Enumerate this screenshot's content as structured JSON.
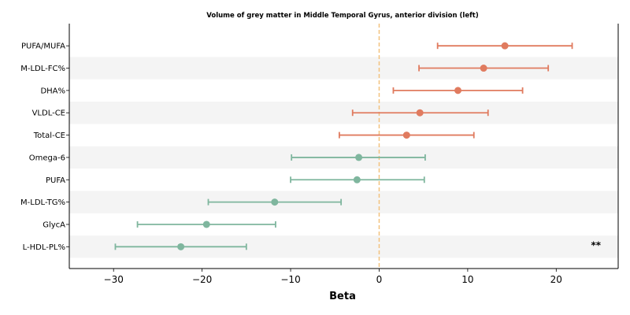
{
  "chart_data": {
    "type": "forest",
    "title": "Volume of grey matter in Middle Temporal Gyrus, anterior division (left)",
    "xlabel": "Beta",
    "xlim": [
      -35,
      27
    ],
    "xticks": [
      -30,
      -20,
      -10,
      0,
      10,
      20
    ],
    "xtick_labels": [
      "−30",
      "−20",
      "−10",
      "0",
      "10",
      "20"
    ],
    "reference_line": 0,
    "colors": {
      "positive": "#e07b5f",
      "negative": "#7fb69e",
      "reference": "#f2c27e",
      "band": "#f4f4f4"
    },
    "rows": [
      {
        "label": "PUFA/MUFA",
        "beta": 14.2,
        "lo": 6.6,
        "hi": 21.8,
        "annotation": ""
      },
      {
        "label": "M-LDL-FC%",
        "beta": 11.8,
        "lo": 4.5,
        "hi": 19.1,
        "annotation": ""
      },
      {
        "label": "DHA%",
        "beta": 8.9,
        "lo": 1.6,
        "hi": 16.2,
        "annotation": ""
      },
      {
        "label": "VLDL-CE",
        "beta": 4.6,
        "lo": -3.0,
        "hi": 12.3,
        "annotation": ""
      },
      {
        "label": "Total-CE",
        "beta": 3.1,
        "lo": -4.5,
        "hi": 10.7,
        "annotation": ""
      },
      {
        "label": "Omega-6",
        "beta": -2.3,
        "lo": -9.9,
        "hi": 5.2,
        "annotation": ""
      },
      {
        "label": "PUFA",
        "beta": -2.5,
        "lo": -10.0,
        "hi": 5.1,
        "annotation": ""
      },
      {
        "label": "M-LDL-TG%",
        "beta": -11.8,
        "lo": -19.3,
        "hi": -4.3,
        "annotation": ""
      },
      {
        "label": "GlycA",
        "beta": -19.5,
        "lo": -27.3,
        "hi": -11.7,
        "annotation": ""
      },
      {
        "label": "L-HDL-PL%",
        "beta": -22.4,
        "lo": -29.8,
        "hi": -15.0,
        "annotation": "**"
      }
    ]
  }
}
